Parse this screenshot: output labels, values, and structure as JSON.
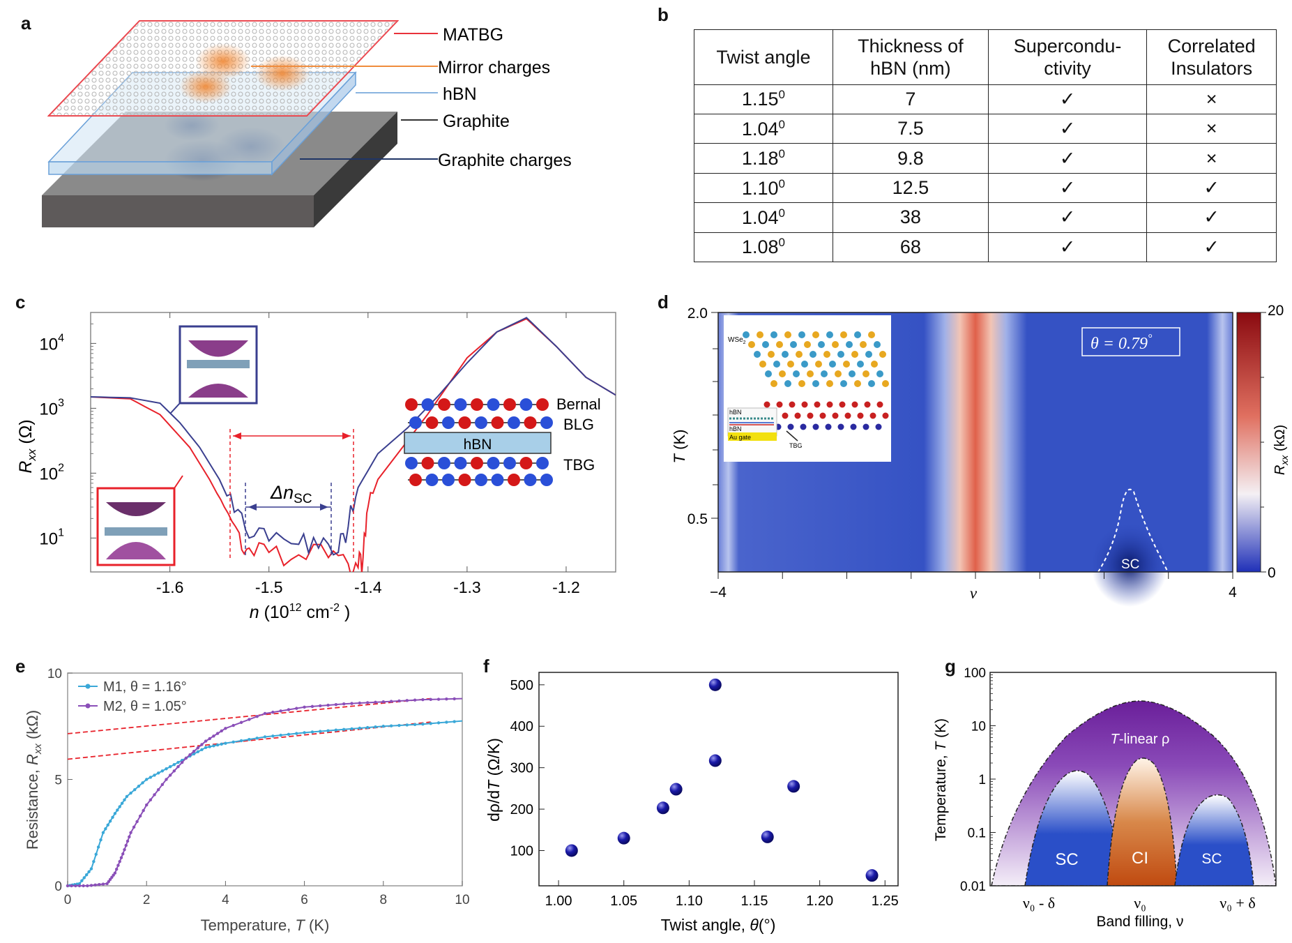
{
  "panels": {
    "a": {
      "label": "a",
      "legend": [
        "MATBG",
        "Mirror charges",
        "hBN",
        "Graphite",
        "Graphite charges"
      ],
      "colors": {
        "matbg": "#e8323a",
        "mirror": "#f08c3c",
        "hbn": "#8ab4e0",
        "graphite": "#333333",
        "graphite_charges": "#1f3566"
      }
    },
    "b": {
      "label": "b",
      "headers": [
        [
          "Twist angle"
        ],
        [
          "Thickness of",
          "hBN (nm)"
        ],
        [
          "Supercondu-",
          "ctivity"
        ],
        [
          "Correlated",
          "Insulators"
        ]
      ],
      "rows": [
        {
          "angle": "1.15",
          "sup": "0",
          "thickness": "7",
          "sc": "✓",
          "ci": "×"
        },
        {
          "angle": "1.04",
          "sup": "0",
          "thickness": "7.5",
          "sc": "✓",
          "ci": "×"
        },
        {
          "angle": "1.18",
          "sup": "0",
          "thickness": "9.8",
          "sc": "✓",
          "ci": "×"
        },
        {
          "angle": "1.10",
          "sup": "0",
          "thickness": "12.5",
          "sc": "✓",
          "ci": "✓"
        },
        {
          "angle": "1.04",
          "sup": "0",
          "thickness": "38",
          "sc": "✓",
          "ci": "✓"
        },
        {
          "angle": "1.08",
          "sup": "0",
          "thickness": "68",
          "sc": "✓",
          "ci": "✓"
        }
      ]
    },
    "c": {
      "label": "c",
      "ylabel_main": "R",
      "ylabel_sub": "xx",
      "ylabel_unit": " (Ω)",
      "xlabel_main": "n",
      "xlabel_rest": " (10",
      "xlabel_exp": "12",
      "xlabel_unit": " cm",
      "xlabel_unit_exp": "-2",
      "xlabel_close": " )",
      "x_ticks": [
        "-1.6",
        "-1.5",
        "-1.4",
        "-1.3",
        "-1.2"
      ],
      "y_ticks_base": "10",
      "y_ticks_exp": [
        "1",
        "2",
        "3",
        "4"
      ],
      "delta_label": "Δn",
      "delta_sub": "SC",
      "stack_labels": [
        "Bernal",
        "BLG",
        "hBN",
        "TBG"
      ],
      "colors": {
        "red": "#e8212a",
        "blue": "#3a3f8f",
        "hbn": "#a8cfe8"
      },
      "chart_data": {
        "type": "line",
        "x_range": [
          -1.68,
          -1.15
        ],
        "ylog": true,
        "y_range": [
          3,
          30000
        ],
        "series": [
          {
            "color": "red",
            "x": [
              -1.68,
              -1.64,
              -1.61,
              -1.58,
              -1.56,
              -1.545,
              -1.53,
              -1.52,
              -1.5,
              -1.47,
              -1.44,
              -1.42,
              -1.41,
              -1.405,
              -1.4,
              -1.39,
              -1.37,
              -1.34,
              -1.3,
              -1.27,
              -1.24,
              -1.21,
              -1.18,
              -1.15
            ],
            "y": [
              1500,
              1400,
              800,
              250,
              80,
              30,
              12,
              7,
              6,
              5.5,
              5,
              4,
              3.5,
              5,
              30,
              80,
              200,
              800,
              6000,
              15000,
              24000,
              9000,
              3000,
              1600
            ]
          },
          {
            "color": "blue",
            "x": [
              -1.68,
              -1.64,
              -1.61,
              -1.59,
              -1.57,
              -1.55,
              -1.535,
              -1.52,
              -1.5,
              -1.47,
              -1.45,
              -1.43,
              -1.42,
              -1.41,
              -1.39,
              -1.36,
              -1.33,
              -1.3,
              -1.27,
              -1.24,
              -1.21,
              -1.18,
              -1.15
            ],
            "y": [
              1500,
              1450,
              1200,
              600,
              250,
              80,
              25,
              10,
              9,
              8,
              7,
              6,
              15,
              60,
              200,
              500,
              1500,
              5000,
              15000,
              25000,
              9000,
              3000,
              1600
            ]
          }
        ]
      }
    },
    "d": {
      "label": "d",
      "ylabel": "T",
      "ylabel_unit": " (K)",
      "xlabel": "ν",
      "x_ticks": [
        "−4",
        "4"
      ],
      "y_ticks": [
        "2.0",
        "0.5"
      ],
      "theta_label": "θ = 0.79",
      "theta_deg": "°",
      "sc_label": "SC",
      "colorbar_ticks": [
        "20",
        "0"
      ],
      "colorbar_label_main": "R",
      "colorbar_label_sub": "xx",
      "colorbar_label_unit": " (kΩ)",
      "inset_labels": [
        "WSe",
        "2",
        "hBN",
        "hBN",
        "Au gate",
        "TBG"
      ],
      "colors": {
        "bg": "#2f4cc4",
        "peak": "#e0604a"
      }
    },
    "e": {
      "label": "e",
      "ylabel": "Resistance, ",
      "ylabel_var": "R",
      "ylabel_sub": "xx",
      "ylabel_unit": " (kΩ)",
      "xlabel": "Temperature, ",
      "xlabel_var": "T",
      "xlabel_unit": " (K)",
      "legend": [
        "M1, θ = 1.16°",
        "M2, θ = 1.05°"
      ],
      "x_ticks": [
        "0",
        "2",
        "4",
        "6",
        "8",
        "10"
      ],
      "y_ticks": [
        "0",
        "5",
        "10"
      ],
      "colors": {
        "m1": "#3aa8d8",
        "m2": "#8a4fb8",
        "fit": "#e8212a"
      },
      "chart_data": {
        "type": "line",
        "x_range": [
          0,
          10
        ],
        "y_range": [
          0,
          10
        ],
        "series": [
          {
            "name": "M1, θ = 1.16°",
            "x": [
              0,
              0.3,
              0.6,
              0.9,
              1.2,
              1.5,
              2,
              2.5,
              3,
              3.5,
              4,
              5,
              6,
              7,
              8,
              9,
              10
            ],
            "y": [
              0,
              0.1,
              0.8,
              2.5,
              3.4,
              4.2,
              5.0,
              5.5,
              6.0,
              6.5,
              6.7,
              7.0,
              7.2,
              7.35,
              7.5,
              7.6,
              7.75
            ]
          },
          {
            "name": "M2, θ = 1.05°",
            "x": [
              0,
              0.5,
              1,
              1.2,
              1.4,
              1.6,
              2,
              2.5,
              3,
              3.5,
              4,
              5,
              6,
              7,
              8,
              9,
              10
            ],
            "y": [
              0,
              0,
              0.1,
              0.6,
              1.5,
              2.5,
              3.8,
              5.0,
              6.0,
              6.8,
              7.4,
              8.1,
              8.4,
              8.55,
              8.65,
              8.75,
              8.8
            ]
          }
        ],
        "fits": [
          {
            "x": [
              0,
              9.2
            ],
            "y": [
              7.15,
              8.8
            ]
          },
          {
            "x": [
              0,
              9.2
            ],
            "y": [
              5.95,
              7.7
            ]
          }
        ]
      }
    },
    "f": {
      "label": "f",
      "ylabel": "dρ/d",
      "ylabel_var": "T",
      "ylabel_unit": " (Ω/K)",
      "xlabel": "Twist angle, ",
      "xlabel_var": "θ",
      "xlabel_unit": "(°)",
      "x_ticks": [
        "1.00",
        "1.05",
        "1.10",
        "1.15",
        "1.20",
        "1.25"
      ],
      "y_ticks": [
        "100",
        "200",
        "300",
        "400",
        "500"
      ],
      "colors": {
        "point": "#1a1aa8"
      },
      "chart_data": {
        "type": "scatter",
        "x_range": [
          0.985,
          1.26
        ],
        "y_range": [
          15,
          530
        ],
        "x": [
          1.01,
          1.05,
          1.08,
          1.09,
          1.12,
          1.12,
          1.16,
          1.18,
          1.24
        ],
        "y": [
          100,
          130,
          203,
          248,
          500,
          317,
          133,
          255,
          40
        ]
      }
    },
    "g": {
      "label": "g",
      "ylabel": "Temperature, ",
      "ylabel_var": "T",
      "ylabel_unit": " (K)",
      "xlabel": "Band filling, ν",
      "x_ticks": [
        "ν₀ - δ",
        "ν₀",
        "ν₀ + δ"
      ],
      "y_ticks": [
        "0.01",
        "0.1",
        "1",
        "10",
        "100"
      ],
      "regions": [
        "T-linear ρ",
        "SC",
        "CI",
        "SC"
      ],
      "region_var": "T",
      "region_rest": "-linear ρ",
      "colors": {
        "purple": "#7a2ea8",
        "sc": "#2a4fc8",
        "ci": "#c8601e"
      }
    }
  }
}
